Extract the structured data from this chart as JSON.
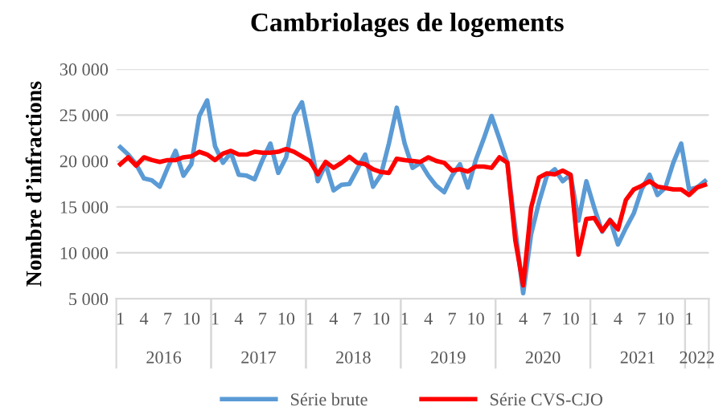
{
  "chart_data": {
    "type": "line",
    "title": "Cambriolages de logements",
    "ylabel": "Nombre d’infractions",
    "categories": [
      "1",
      null,
      null,
      "4",
      null,
      null,
      "7",
      null,
      null,
      "10",
      null,
      null,
      "1",
      null,
      null,
      "4",
      null,
      null,
      "7",
      null,
      null,
      "10",
      null,
      null,
      "1",
      null,
      null,
      "4",
      null,
      null,
      "7",
      null,
      null,
      "10",
      null,
      null,
      "1",
      null,
      null,
      "4",
      null,
      null,
      "7",
      null,
      null,
      "10",
      null,
      null,
      "1",
      null,
      null,
      "4",
      null,
      null,
      "7",
      null,
      null,
      "10",
      null,
      null,
      "1",
      null,
      null,
      "4",
      null,
      null,
      "7",
      null,
      null,
      "10",
      null,
      null,
      "1",
      null,
      null
    ],
    "annotations": [
      "2016",
      "2017",
      "2018",
      "2019",
      "2020",
      "2021",
      "2022"
    ],
    "series": [
      {
        "name": "Série brute",
        "color": "#5b9bd5",
        "values": [
          21500,
          20700,
          19650,
          18100,
          17900,
          17200,
          19250,
          21100,
          18400,
          19650,
          24900,
          26600,
          21600,
          19800,
          20900,
          18500,
          18400,
          18000,
          20100,
          21900,
          18700,
          20400,
          24900,
          26400,
          22200,
          17800,
          19650,
          16800,
          17400,
          17500,
          19100,
          20700,
          17200,
          18500,
          21900,
          25800,
          21900,
          19250,
          19800,
          18400,
          17300,
          16600,
          18400,
          19650,
          17100,
          20100,
          22400,
          24900,
          22400,
          19800,
          12600,
          5600,
          12000,
          15500,
          18400,
          19100,
          17800,
          18500,
          13500,
          17800,
          14900,
          12300,
          13600,
          10900,
          12700,
          14300,
          16900,
          18500,
          16300,
          17100,
          19800,
          21900,
          16900,
          17100,
          17800
        ]
      },
      {
        "name": "Série CVS-CJO",
        "color": "#ff0000",
        "values": [
          19650,
          20400,
          19500,
          20400,
          20100,
          19900,
          20100,
          20100,
          20400,
          20500,
          21000,
          20700,
          20100,
          20800,
          21100,
          20700,
          20700,
          21000,
          20900,
          20900,
          21000,
          21300,
          21000,
          20500,
          20000,
          18550,
          19900,
          19250,
          19800,
          20450,
          19800,
          19650,
          19100,
          18800,
          18700,
          20250,
          20100,
          20000,
          19900,
          20400,
          20000,
          19800,
          18950,
          19100,
          18850,
          19400,
          19400,
          19250,
          20400,
          19800,
          11400,
          6450,
          14900,
          18200,
          18650,
          18550,
          18950,
          18500,
          9800,
          13700,
          13800,
          12400,
          13550,
          12550,
          15750,
          16900,
          17300,
          17800,
          17200,
          17050,
          16900,
          16900,
          16300,
          17100,
          17400
        ]
      }
    ],
    "ylim": [
      5000,
      30000
    ],
    "yticks": [
      {
        "value": 5000,
        "label": "5 000"
      },
      {
        "value": 10000,
        "label": "10 000"
      },
      {
        "value": 15000,
        "label": "15 000"
      },
      {
        "value": 20000,
        "label": "20 000"
      },
      {
        "value": 25000,
        "label": "25 000"
      },
      {
        "value": 30000,
        "label": "30 000"
      }
    ],
    "grid": "y",
    "legend": "bottom"
  }
}
